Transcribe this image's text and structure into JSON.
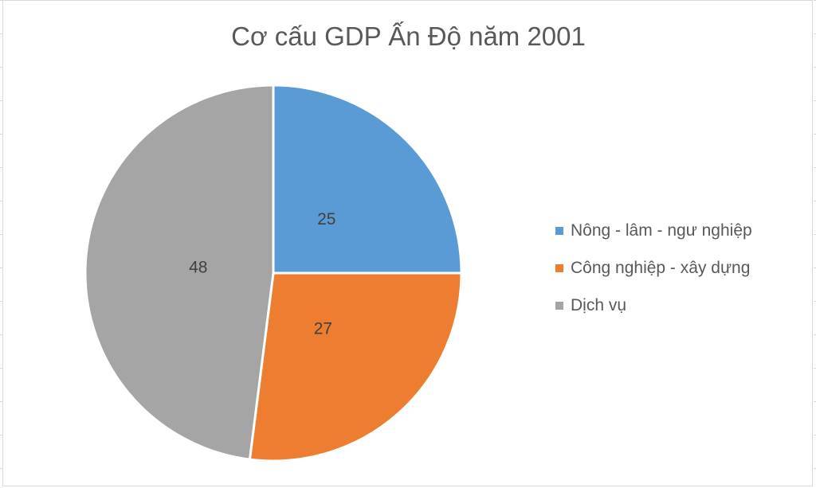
{
  "chart_data": {
    "type": "pie",
    "title": "Cơ cấu GDP Ấn Độ năm 2001",
    "categories": [
      "Nông - lâm - ngư nghiệp",
      "Công nghiệp - xây dựng",
      "Dịch vụ"
    ],
    "values": [
      25,
      27,
      48
    ],
    "colors": [
      "#5b9bd5",
      "#ed7d31",
      "#a5a5a5"
    ],
    "data_labels": [
      "25",
      "27",
      "48"
    ],
    "legend_position": "right"
  }
}
